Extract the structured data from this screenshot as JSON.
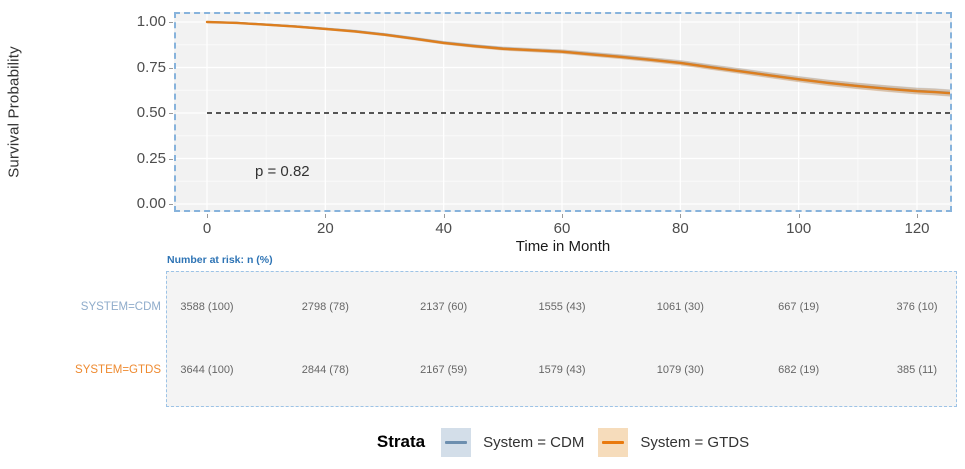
{
  "chart": {
    "y_axis_title": "Survival Probability",
    "x_axis_title": "Time in Month",
    "p_value_label": "p = 0.82"
  },
  "chart_data": {
    "type": "line",
    "subtype": "kaplan-meier-survival",
    "title": "",
    "xlabel": "Time in Month",
    "ylabel": "Survival Probability",
    "xlim": [
      -5.6,
      126
    ],
    "ylim": [
      -0.04,
      1.05
    ],
    "x_ticks": [
      0,
      20,
      40,
      60,
      80,
      100,
      120
    ],
    "y_ticks": [
      0.0,
      0.25,
      0.5,
      0.75,
      1.0
    ],
    "y_tick_labels": [
      "0.00",
      "0.25",
      "0.50",
      "0.75",
      "1.00"
    ],
    "grid": true,
    "legend_position": "bottom",
    "reference_line_y": 0.5,
    "annotation": {
      "text": "p = 0.82",
      "x": 12,
      "y": 0.18
    },
    "x": [
      0,
      5,
      10,
      15,
      20,
      25,
      30,
      35,
      40,
      45,
      50,
      55,
      60,
      65,
      70,
      75,
      80,
      85,
      90,
      95,
      100,
      105,
      110,
      115,
      120,
      123,
      126
    ],
    "series": [
      {
        "name": "System = CDM",
        "color": "#7b9cbc",
        "band_color": "rgba(123,156,188,0.30)",
        "values": [
          1.0,
          0.996,
          0.986,
          0.976,
          0.963,
          0.95,
          0.932,
          0.91,
          0.887,
          0.87,
          0.855,
          0.846,
          0.838,
          0.824,
          0.81,
          0.794,
          0.777,
          0.754,
          0.732,
          0.709,
          0.687,
          0.667,
          0.65,
          0.635,
          0.622,
          0.617,
          0.61
        ]
      },
      {
        "name": "System = GTDS",
        "color": "#dd7e1e",
        "band_color": "rgba(221,126,30,0.28)",
        "values": [
          1.0,
          0.995,
          0.985,
          0.975,
          0.962,
          0.948,
          0.93,
          0.908,
          0.885,
          0.868,
          0.853,
          0.845,
          0.837,
          0.822,
          0.808,
          0.792,
          0.775,
          0.752,
          0.73,
          0.707,
          0.685,
          0.665,
          0.648,
          0.633,
          0.62,
          0.615,
          0.608
        ]
      }
    ]
  },
  "risk_table": {
    "title": "Number at risk: n (%)",
    "columns": [
      0,
      20,
      40,
      60,
      80,
      100,
      120
    ],
    "rows": [
      {
        "label": "SYSTEM=CDM",
        "label_color": "#8faccb",
        "values": [
          "3588 (100)",
          "2798 (78)",
          "2137 (60)",
          "1555 (43)",
          "1061 (30)",
          "667 (19)",
          "376 (10)"
        ]
      },
      {
        "label": "SYSTEM=GTDS",
        "label_color": "#ee8a30",
        "values": [
          "3644 (100)",
          "2844 (78)",
          "2167 (59)",
          "1579 (43)",
          "1079 (30)",
          "682 (19)",
          "385 (11)"
        ]
      }
    ]
  },
  "legend": {
    "title": "Strata",
    "items": [
      {
        "label": "System = CDM",
        "line_color": "#6d8faf",
        "fill_color": "#d3dee9"
      },
      {
        "label": "System = GTDS",
        "line_color": "#e97a0e",
        "fill_color": "#f6dcbb"
      }
    ]
  },
  "colors": {
    "panel_bg": "#f2f2f2",
    "risk_panel_bg": "#f4f4f4",
    "highlight_border": "#87b3dc",
    "gridline": "#ffffff",
    "reference_line": "#202020",
    "axis_text": "#4d4d4d",
    "risk_title_blue": "#2e74b5"
  }
}
